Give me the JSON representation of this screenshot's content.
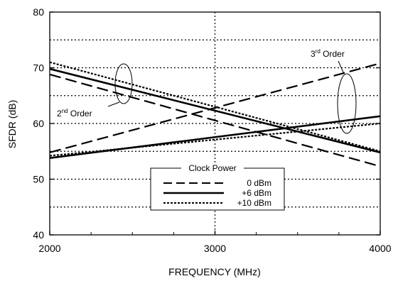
{
  "chart_data": {
    "type": "line",
    "xlabel": "FREQUENCY (MHz)",
    "ylabel": "SFDR (dB)",
    "xlim": [
      2000,
      4000
    ],
    "ylim": [
      40,
      80
    ],
    "x_ticks": [
      "2000",
      "3000",
      "4000"
    ],
    "y_ticks": [
      "40",
      "50",
      "60",
      "70",
      "80"
    ],
    "grid": "dotted",
    "legend": {
      "title": "Clock Power",
      "placement": "bottom-center",
      "entries": [
        "0 dBm",
        "+6 dBm",
        "+10 dBm"
      ]
    },
    "annotations": {
      "third_order": {
        "base": "3",
        "sup": "rd",
        "rest": " Order"
      },
      "second_order": {
        "base": "2",
        "sup": "nd",
        "rest": " Order"
      }
    },
    "series": [
      {
        "name": "0 dBm",
        "style": "dashed",
        "group": "2nd Order",
        "x": [
          2000,
          4000
        ],
        "y": [
          68.8,
          52.3
        ]
      },
      {
        "name": "+6 dBm",
        "style": "solid",
        "group": "2nd Order",
        "x": [
          2000,
          4000
        ],
        "y": [
          69.8,
          54.8
        ]
      },
      {
        "name": "+10 dBm",
        "style": "dotted",
        "group": "2nd Order",
        "x": [
          2000,
          4000
        ],
        "y": [
          71.0,
          55.0
        ]
      },
      {
        "name": "0 dBm",
        "style": "dashed",
        "group": "3rd Order",
        "x": [
          2000,
          4000
        ],
        "y": [
          54.8,
          70.8
        ]
      },
      {
        "name": "+6 dBm",
        "style": "solid",
        "group": "3rd Order",
        "x": [
          2000,
          4000
        ],
        "y": [
          53.8,
          61.3
        ]
      },
      {
        "name": "+10 dBm",
        "style": "dotted",
        "group": "3rd Order",
        "x": [
          2000,
          4000
        ],
        "y": [
          54.2,
          60.0
        ]
      }
    ]
  }
}
